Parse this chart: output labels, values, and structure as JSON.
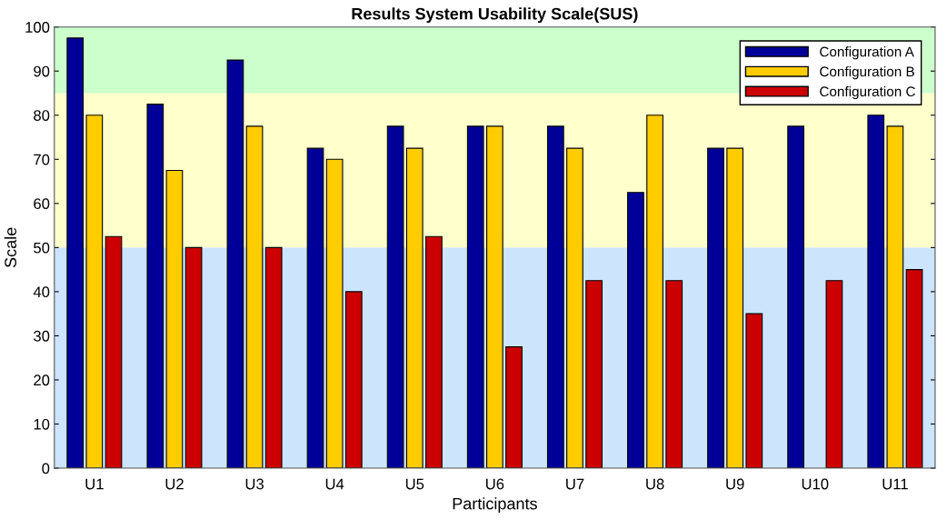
{
  "chart_data": {
    "type": "bar",
    "title": "Results System Usability Scale(SUS)",
    "xlabel": "Participants",
    "ylabel": "Scale",
    "categories": [
      "U1",
      "U2",
      "U3",
      "U4",
      "U5",
      "U6",
      "U7",
      "U8",
      "U9",
      "U10",
      "U11"
    ],
    "series": [
      {
        "name": "Configuration A",
        "color": "#000099",
        "values": [
          97.5,
          82.5,
          92.5,
          72.5,
          77.5,
          77.5,
          77.5,
          62.5,
          72.5,
          77.5,
          80
        ]
      },
      {
        "name": "Configuration B",
        "color": "#ffcc00",
        "values": [
          80,
          67.5,
          77.5,
          70,
          72.5,
          77.5,
          72.5,
          80,
          72.5,
          null,
          77.5
        ]
      },
      {
        "name": "Configuration C",
        "color": "#cc0000",
        "values": [
          52.5,
          50,
          50,
          40,
          52.5,
          27.5,
          42.5,
          42.5,
          35,
          42.5,
          45
        ]
      }
    ],
    "bands": [
      {
        "axis": "y",
        "from": 0,
        "to": 50,
        "color": "#cce4fc"
      },
      {
        "axis": "y",
        "from": 50,
        "to": 85,
        "color": "#ffffcc"
      },
      {
        "axis": "y",
        "from": 85,
        "to": 100,
        "color": "#ccffcc"
      }
    ],
    "ylim": [
      0,
      100
    ],
    "yticks": [
      0,
      10,
      20,
      30,
      40,
      50,
      60,
      70,
      80,
      90,
      100
    ],
    "grid": false,
    "legend": "top right"
  }
}
